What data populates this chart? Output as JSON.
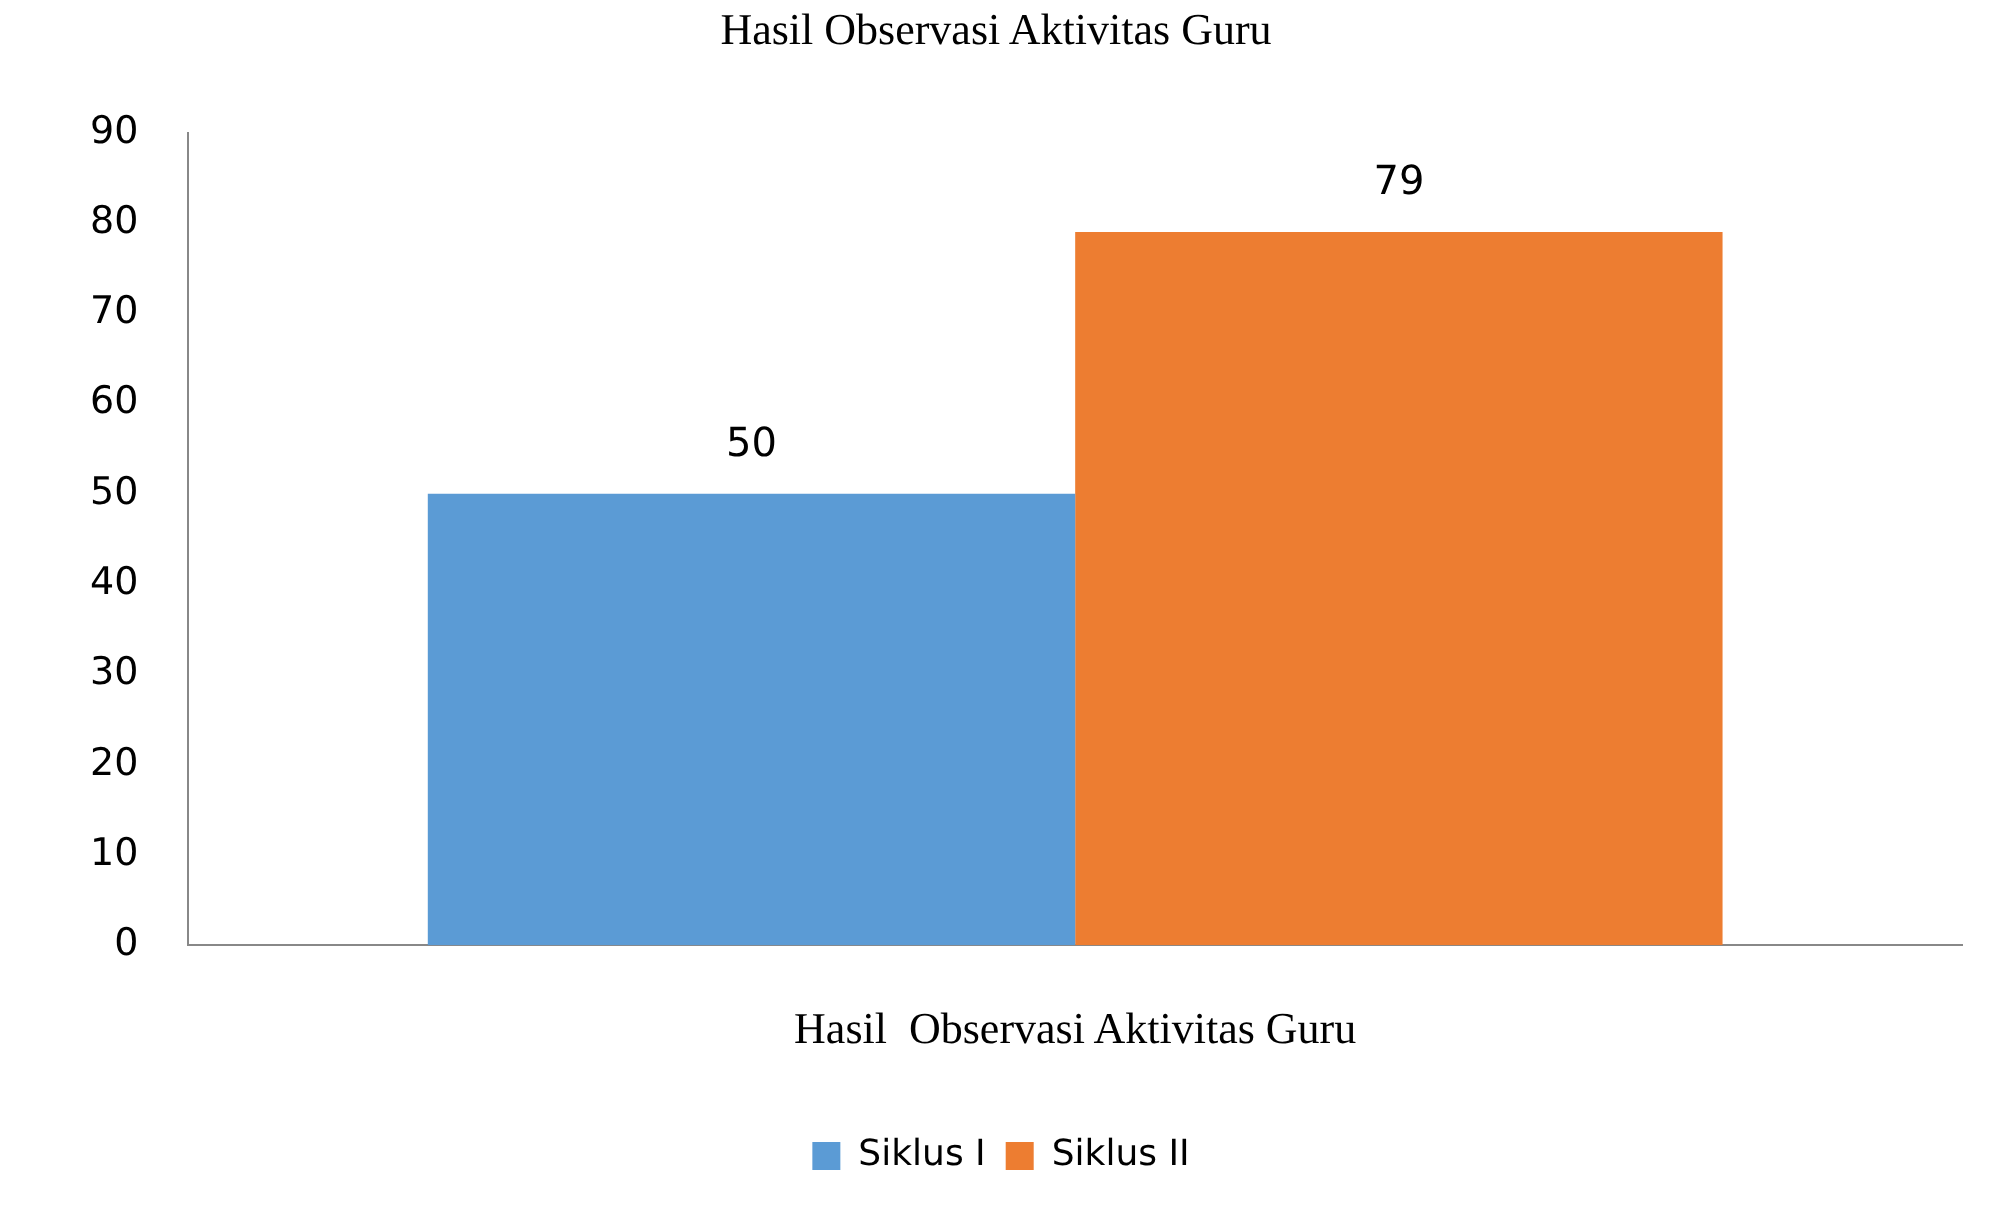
{
  "chart_data": {
    "type": "bar",
    "title": "Hasil  Observasi Aktivitas Guru",
    "categories": [
      "Hasil  Observasi Aktivitas Guru"
    ],
    "series": [
      {
        "name": "Siklus I",
        "color": "#5b9bd5",
        "values": [
          50
        ]
      },
      {
        "name": "Siklus II",
        "color": "#ed7d31",
        "values": [
          79
        ]
      }
    ],
    "ylim": [
      0,
      90
    ],
    "yticks": [
      0,
      10,
      20,
      30,
      40,
      50,
      60,
      70,
      80,
      90
    ],
    "grid": false,
    "legend": "bottom",
    "data_labels": true
  }
}
